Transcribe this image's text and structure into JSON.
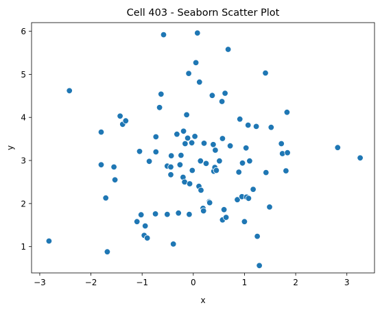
{
  "chart_data": {
    "type": "scatter",
    "title": "Cell 403 - Seaborn Scatter Plot",
    "xlabel": "x",
    "ylabel": "y",
    "xlim": [
      -3.16,
      3.54
    ],
    "ylim": [
      0.39,
      6.2
    ],
    "xticks": [
      -3,
      -2,
      -1,
      0,
      1,
      2,
      3
    ],
    "yticks": [
      1,
      2,
      3,
      4,
      5,
      6
    ],
    "grid": false,
    "legend": "none",
    "colors": {
      "point": "#1f77b4",
      "point_edge": "#ffffff",
      "axes": "#000000"
    },
    "points": [
      {
        "x": -2.82,
        "y": 1.13
      },
      {
        "x": -2.42,
        "y": 4.62
      },
      {
        "x": -1.8,
        "y": 3.66
      },
      {
        "x": -1.8,
        "y": 2.9
      },
      {
        "x": -1.71,
        "y": 2.13
      },
      {
        "x": -1.68,
        "y": 0.88
      },
      {
        "x": -1.55,
        "y": 2.85
      },
      {
        "x": -1.53,
        "y": 2.55
      },
      {
        "x": -1.43,
        "y": 4.03
      },
      {
        "x": -1.38,
        "y": 3.84
      },
      {
        "x": -1.32,
        "y": 3.92
      },
      {
        "x": -1.1,
        "y": 1.58
      },
      {
        "x": -1.05,
        "y": 3.21
      },
      {
        "x": -1.02,
        "y": 1.74
      },
      {
        "x": -0.96,
        "y": 1.26
      },
      {
        "x": -0.94,
        "y": 1.48
      },
      {
        "x": -0.9,
        "y": 1.2
      },
      {
        "x": -0.86,
        "y": 2.98
      },
      {
        "x": -0.73,
        "y": 3.2
      },
      {
        "x": -0.73,
        "y": 3.55
      },
      {
        "x": -0.74,
        "y": 1.76
      },
      {
        "x": -0.66,
        "y": 4.23
      },
      {
        "x": -0.63,
        "y": 4.54
      },
      {
        "x": -0.58,
        "y": 5.92
      },
      {
        "x": -0.51,
        "y": 1.75
      },
      {
        "x": -0.51,
        "y": 2.87
      },
      {
        "x": -0.44,
        "y": 2.85
      },
      {
        "x": -0.44,
        "y": 2.67
      },
      {
        "x": -0.43,
        "y": 3.11
      },
      {
        "x": -0.39,
        "y": 1.06
      },
      {
        "x": -0.32,
        "y": 3.61
      },
      {
        "x": -0.29,
        "y": 1.78
      },
      {
        "x": -0.26,
        "y": 2.9
      },
      {
        "x": -0.24,
        "y": 3.12
      },
      {
        "x": -0.2,
        "y": 2.61
      },
      {
        "x": -0.19,
        "y": 3.68
      },
      {
        "x": -0.17,
        "y": 2.5
      },
      {
        "x": -0.16,
        "y": 3.39
      },
      {
        "x": -0.13,
        "y": 4.06
      },
      {
        "x": -0.11,
        "y": 3.52
      },
      {
        "x": -0.09,
        "y": 5.02
      },
      {
        "x": -0.08,
        "y": 1.75
      },
      {
        "x": -0.07,
        "y": 2.46
      },
      {
        "x": -0.02,
        "y": 2.77
      },
      {
        "x": -0.03,
        "y": 3.41
      },
      {
        "x": 0.03,
        "y": 3.56
      },
      {
        "x": 0.05,
        "y": 5.27
      },
      {
        "x": 0.08,
        "y": 5.96
      },
      {
        "x": 0.11,
        "y": 2.4
      },
      {
        "x": 0.12,
        "y": 4.82
      },
      {
        "x": 0.14,
        "y": 2.99
      },
      {
        "x": 0.15,
        "y": 2.31
      },
      {
        "x": 0.19,
        "y": 1.89
      },
      {
        "x": 0.2,
        "y": 1.83
      },
      {
        "x": 0.21,
        "y": 3.4
      },
      {
        "x": 0.25,
        "y": 2.93
      },
      {
        "x": 0.31,
        "y": 2.04
      },
      {
        "x": 0.32,
        "y": 2.02
      },
      {
        "x": 0.37,
        "y": 4.51
      },
      {
        "x": 0.39,
        "y": 3.37
      },
      {
        "x": 0.4,
        "y": 2.75
      },
      {
        "x": 0.42,
        "y": 2.84
      },
      {
        "x": 0.43,
        "y": 3.24
      },
      {
        "x": 0.45,
        "y": 2.77
      },
      {
        "x": 0.51,
        "y": 2.99
      },
      {
        "x": 0.56,
        "y": 4.37
      },
      {
        "x": 0.57,
        "y": 3.51
      },
      {
        "x": 0.57,
        "y": 1.62
      },
      {
        "x": 0.6,
        "y": 1.86
      },
      {
        "x": 0.62,
        "y": 4.56
      },
      {
        "x": 0.64,
        "y": 1.68
      },
      {
        "x": 0.68,
        "y": 5.58
      },
      {
        "x": 0.72,
        "y": 3.34
      },
      {
        "x": 0.86,
        "y": 2.09
      },
      {
        "x": 0.89,
        "y": 2.73
      },
      {
        "x": 0.91,
        "y": 3.96
      },
      {
        "x": 0.95,
        "y": 2.16
      },
      {
        "x": 0.96,
        "y": 2.94
      },
      {
        "x": 1.0,
        "y": 1.58
      },
      {
        "x": 1.03,
        "y": 3.29
      },
      {
        "x": 1.04,
        "y": 2.15
      },
      {
        "x": 1.07,
        "y": 3.82
      },
      {
        "x": 1.08,
        "y": 2.12
      },
      {
        "x": 1.1,
        "y": 2.99
      },
      {
        "x": 1.17,
        "y": 2.33
      },
      {
        "x": 1.23,
        "y": 3.79
      },
      {
        "x": 1.25,
        "y": 1.24
      },
      {
        "x": 1.29,
        "y": 0.56
      },
      {
        "x": 1.41,
        "y": 5.03
      },
      {
        "x": 1.42,
        "y": 2.72
      },
      {
        "x": 1.49,
        "y": 1.92
      },
      {
        "x": 1.52,
        "y": 3.77
      },
      {
        "x": 1.72,
        "y": 3.39
      },
      {
        "x": 1.74,
        "y": 3.16
      },
      {
        "x": 1.81,
        "y": 2.76
      },
      {
        "x": 1.83,
        "y": 4.12
      },
      {
        "x": 1.84,
        "y": 3.18
      },
      {
        "x": 2.82,
        "y": 3.3
      },
      {
        "x": 3.26,
        "y": 3.06
      }
    ]
  }
}
